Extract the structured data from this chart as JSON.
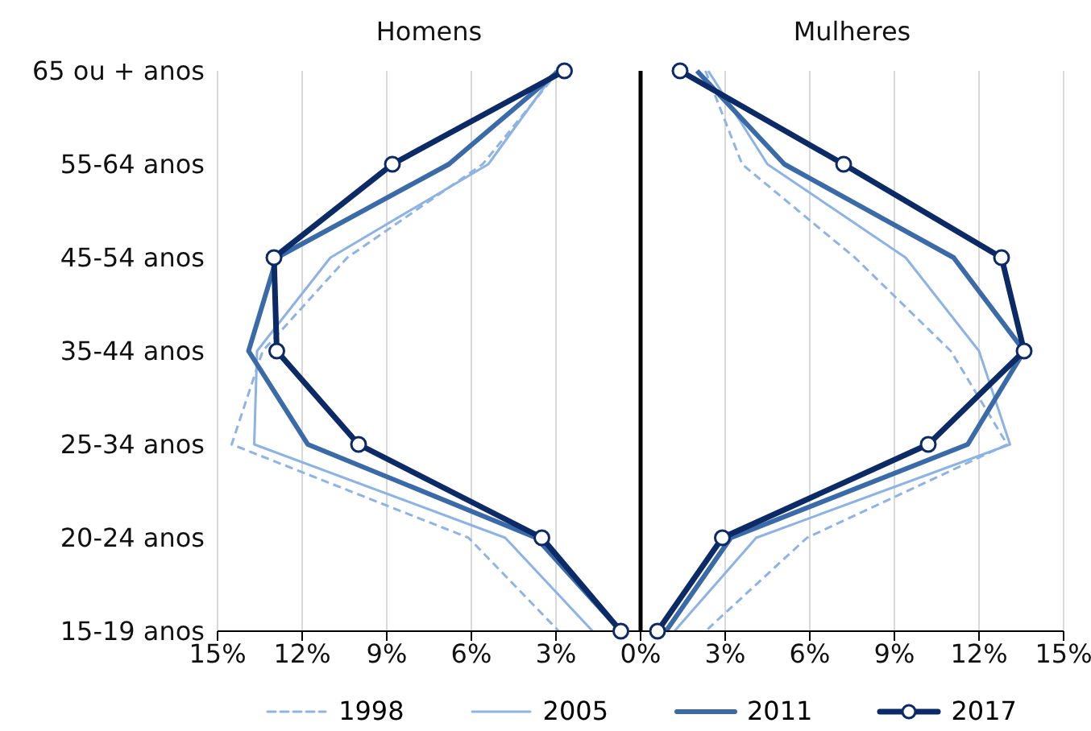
{
  "chart_data": {
    "type": "line",
    "categories": [
      "65 ou + anos",
      "55-64 anos",
      "45-54 anos",
      "35-44 anos",
      "25-34 anos",
      "20-24 anos",
      "15-19 anos"
    ],
    "series": [
      {
        "name": "1998",
        "color": "#8fb4e3",
        "line_style": "dashed",
        "marker": "none",
        "values": [
          -2.9,
          -5.6,
          -10.4,
          -13.4,
          -14.5,
          -6.1,
          -2.9
        ]
      },
      {
        "name": "2005",
        "color": "#8db3e2",
        "line_style": "solid",
        "marker": "none",
        "values": [
          -3.0,
          -5.4,
          -11.0,
          -13.6,
          -13.7,
          -4.8,
          -1.7
        ]
      },
      {
        "name": "2011",
        "color": "#3a6aa8",
        "line_style": "solid",
        "marker": "none",
        "values": [
          -2.9,
          -6.8,
          -12.9,
          -13.9,
          -11.8,
          -3.7,
          -0.7
        ]
      },
      {
        "name": "2017",
        "color": "#0b2a66",
        "line_style": "solid",
        "marker": "circle",
        "values": [
          -2.7,
          -8.8,
          -13.0,
          -12.9,
          -10.0,
          -3.5,
          -0.7
        ]
      },
      {
        "color": "#8fb4e3",
        "line_style": "dashed",
        "marker": "none",
        "values": [
          2.3,
          3.6,
          7.6,
          11.0,
          13.0,
          5.9,
          2.3
        ]
      },
      {
        "color": "#8db3e2",
        "line_style": "solid",
        "marker": "none",
        "values": [
          2.4,
          4.5,
          9.4,
          12.0,
          13.1,
          4.1,
          1.2
        ]
      },
      {
        "color": "#3a6aa8",
        "line_style": "solid",
        "marker": "none",
        "values": [
          2.0,
          5.1,
          11.1,
          13.6,
          11.6,
          3.2,
          0.9
        ]
      },
      {
        "color": "#0b2a66",
        "line_style": "solid",
        "marker": "circle",
        "values": [
          1.4,
          7.2,
          12.8,
          13.6,
          10.2,
          2.9,
          0.6
        ]
      }
    ],
    "orientation": "horizontal",
    "xlim": [
      -15,
      15
    ],
    "xticks": [
      {
        "value": -15,
        "label": "15%"
      },
      {
        "value": -12,
        "label": "12%"
      },
      {
        "value": -9,
        "label": "9%"
      },
      {
        "value": -6,
        "label": "6%"
      },
      {
        "value": -3,
        "label": "3%"
      },
      {
        "value": 0,
        "label": "0%"
      },
      {
        "value": 3,
        "label": "3%"
      },
      {
        "value": 6,
        "label": "6%"
      },
      {
        "value": 9,
        "label": "9%"
      },
      {
        "value": 12,
        "label": "12%"
      },
      {
        "value": 15,
        "label": "15%"
      }
    ],
    "ref_lines": [
      {
        "axis": "x",
        "value": 0,
        "color": "#000000"
      }
    ],
    "annotations": [
      "Homens",
      "Mulheres"
    ],
    "grid": "x",
    "legend": "bottom"
  }
}
